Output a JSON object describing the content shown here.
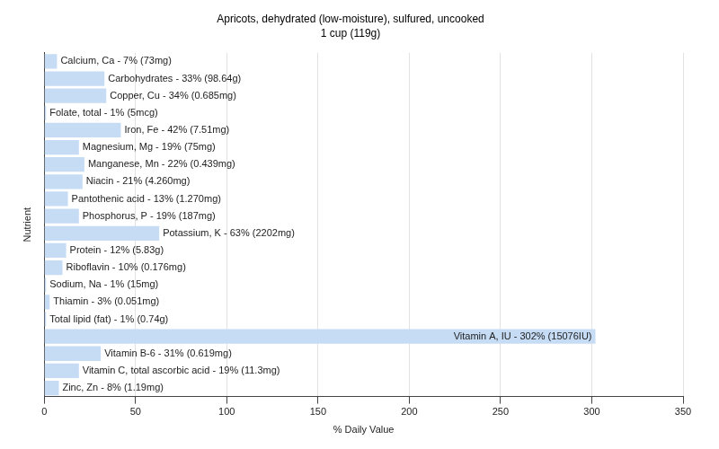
{
  "chart_data": {
    "type": "bar",
    "orientation": "horizontal",
    "title": "Apricots, dehydrated (low-moisture), sulfured, uncooked",
    "subtitle": "1 cup (119g)",
    "x_label": "% Daily Value",
    "y_label": "Nutrient",
    "categories": [
      "Calcium, Ca - 7% (73mg)",
      "Carbohydrates - 33% (98.64g)",
      "Copper, Cu - 34% (0.685mg)",
      "Folate, total - 1% (5mcg)",
      "Iron, Fe - 42% (7.51mg)",
      "Magnesium, Mg - 19% (75mg)",
      "Manganese, Mn - 22% (0.439mg)",
      "Niacin - 21% (4.260mg)",
      "Pantothenic acid - 13% (1.270mg)",
      "Phosphorus, P - 19% (187mg)",
      "Potassium, K - 63% (2202mg)",
      "Protein - 12% (5.83g)",
      "Riboflavin - 10% (0.176mg)",
      "Sodium, Na - 1% (15mg)",
      "Thiamin - 3% (0.051mg)",
      "Total lipid (fat) - 1% (0.74g)",
      "Vitamin A, IU - 302% (15076IU)",
      "Vitamin B-6 - 31% (0.619mg)",
      "Vitamin C, total ascorbic acid - 19% (11.3mg)",
      "Zinc, Zn - 8% (1.19mg)"
    ],
    "values": [
      7,
      33,
      34,
      1,
      42,
      19,
      22,
      21,
      13,
      19,
      63,
      12,
      10,
      1,
      3,
      1,
      302,
      31,
      19,
      8
    ],
    "color": "#c6dcf5",
    "xlim": [
      0,
      350
    ],
    "xticks": [
      0,
      50,
      100,
      150,
      200,
      250,
      300,
      350
    ],
    "grid": true,
    "tick_labels": "x"
  }
}
